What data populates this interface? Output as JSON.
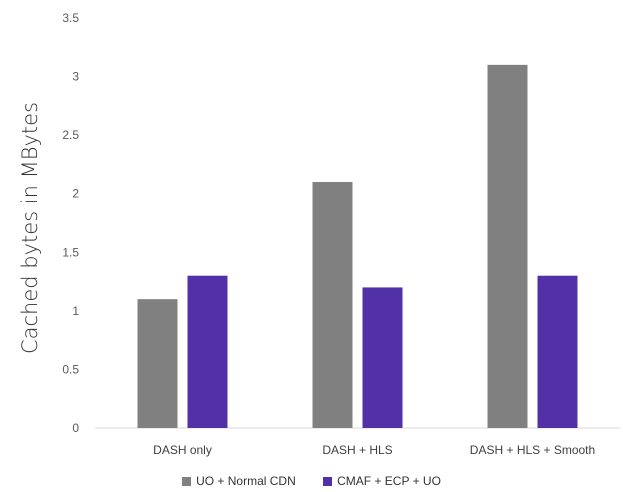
{
  "chart_data": {
    "type": "bar",
    "title": "",
    "xlabel": "",
    "ylabel": "Cached bytes in MBytes",
    "categories": [
      "DASH only",
      "DASH + HLS",
      "DASH + HLS + Smooth"
    ],
    "series": [
      {
        "name": "UO + Normal CDN",
        "values": [
          1.1,
          2.1,
          3.1
        ],
        "color": "#808080"
      },
      {
        "name": "CMAF + ECP + UO",
        "values": [
          1.3,
          1.2,
          1.3
        ],
        "color": "#5230a8"
      }
    ],
    "ylim": [
      0,
      3.5
    ],
    "yticks": [
      "0",
      "0.5",
      "1",
      "1.5",
      "2",
      "2.5",
      "3",
      "3.5"
    ],
    "grid": false,
    "legend_position": "bottom"
  }
}
